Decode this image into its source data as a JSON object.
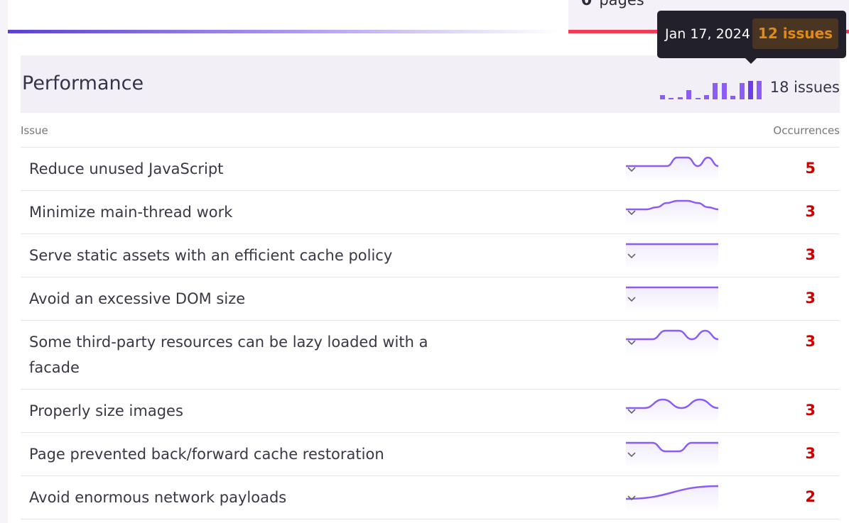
{
  "pages_card": {
    "count": "0",
    "label": "pages"
  },
  "section": {
    "title": "Performance",
    "total": "18 issues",
    "trend": [
      2,
      0.3,
      1,
      4,
      0.3,
      2,
      7,
      7,
      1.5,
      7,
      8,
      8
    ],
    "highlight_index": 10
  },
  "tooltip": {
    "date": "Jan 17, 2024",
    "issues": "12 issues"
  },
  "columns": {
    "issue": "Issue",
    "occurrences": "Occurrences"
  },
  "colors": {
    "accent": "#8b5cf6",
    "count": "#cc0000",
    "tooltip_badge": "#e08a17",
    "bar_red": "#ef3e56"
  },
  "rows": [
    {
      "label": "Reduce unused JavaScript",
      "count": "5",
      "trend": [
        1,
        1,
        1,
        1,
        1,
        3,
        3,
        1,
        3,
        1
      ]
    },
    {
      "label": "Minimize main-thread work",
      "count": "3",
      "trend": [
        1,
        1,
        1,
        1.5,
        2.5,
        3,
        3,
        2.5,
        1.5,
        1
      ]
    },
    {
      "label": "Serve static assets with an efficient cache policy",
      "count": "3",
      "trend": [
        3,
        3,
        3,
        3,
        3,
        3,
        3,
        3,
        3,
        3
      ]
    },
    {
      "label": "Avoid an excessive DOM size",
      "count": "3",
      "trend": [
        3,
        3,
        3,
        3,
        3,
        3,
        3,
        3,
        3,
        3
      ]
    },
    {
      "label": "Some third-party resources can be lazy loaded with a facade",
      "count": "3",
      "trend": [
        1,
        1,
        1,
        3,
        3,
        1,
        3,
        1
      ]
    },
    {
      "label": "Properly size images",
      "count": "3",
      "trend": [
        1,
        1,
        3,
        1,
        3,
        1
      ]
    },
    {
      "label": "Page prevented back/forward cache restoration",
      "count": "3",
      "trend": [
        3,
        3,
        3,
        1,
        1,
        3,
        3,
        3
      ]
    },
    {
      "label": "Avoid enormous network payloads",
      "count": "2",
      "trend": [
        0,
        3
      ]
    }
  ]
}
